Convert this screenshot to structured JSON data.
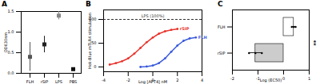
{
  "chart_data": [
    {
      "title": "A",
      "type": "scatter",
      "categories": [
        "FLH",
        "rSIP",
        "LPS",
        "PBS"
      ],
      "values": [
        0.4,
        0.7,
        1.4,
        0.1
      ],
      "errors": [
        0.35,
        0.2,
        0.1,
        0.03
      ],
      "colors": [
        "#555555",
        "#222222",
        "#888888",
        "#111111"
      ],
      "marker": "square",
      "y_label": "OD630nm",
      "ylim": [
        0,
        1.5
      ],
      "yticks": [
        {
          "value": 0,
          "label": "0.0"
        },
        0.5,
        {
          "value": 1,
          "label": "1.0"
        },
        1.5
      ]
    },
    {
      "title": "B",
      "type": "scatter",
      "x_label": "Log [APT4] nM",
      "y_label": "Hek-Blue mTLR4 stimulation",
      "xlim": [
        -4,
        4
      ],
      "xticks": [
        -4,
        -2,
        0,
        2,
        4
      ],
      "ylim": [
        -10,
        120
      ],
      "yticks": [
        0,
        50,
        100
      ],
      "reference_line": {
        "value": 100,
        "label": "LPS (100%)"
      },
      "marker": "circle",
      "line_style": "solid",
      "series": [
        {
          "name": "rSIP",
          "color": "#e8352e",
          "x": [
            -3.5,
            -3,
            -2.5,
            -2,
            -1.5,
            -1,
            -0.5,
            0,
            0.5,
            1,
            1.5,
            2
          ],
          "values": [
            5,
            8,
            12,
            18,
            28,
            40,
            52,
            62,
            70,
            75,
            78,
            80
          ]
        },
        {
          "name": "FLH",
          "color": "#3b5bdb",
          "x": [
            -1,
            -0.5,
            0,
            0.5,
            1,
            1.5,
            2,
            2.5,
            3,
            3.5
          ],
          "values": [
            0,
            1,
            3,
            8,
            18,
            32,
            45,
            55,
            60,
            62
          ]
        }
      ]
    },
    {
      "title": "C",
      "type": "bar",
      "orientation": "horizontal",
      "categories": [
        "FLH",
        "rSIP"
      ],
      "values": [
        0.4,
        -1.1
      ],
      "errors": [
        0.08,
        0.25
      ],
      "points": [
        [
          0.32,
          0.4,
          0.47
        ],
        [
          -1.35,
          -1.1,
          -0.85
        ]
      ],
      "colors": [
        "#ffffff",
        "#cccccc"
      ],
      "x_label": "Log (EC50)",
      "xlim": [
        -2,
        1
      ],
      "xticks": [
        -2,
        -1,
        0,
        1
      ],
      "annotation": "**"
    }
  ]
}
